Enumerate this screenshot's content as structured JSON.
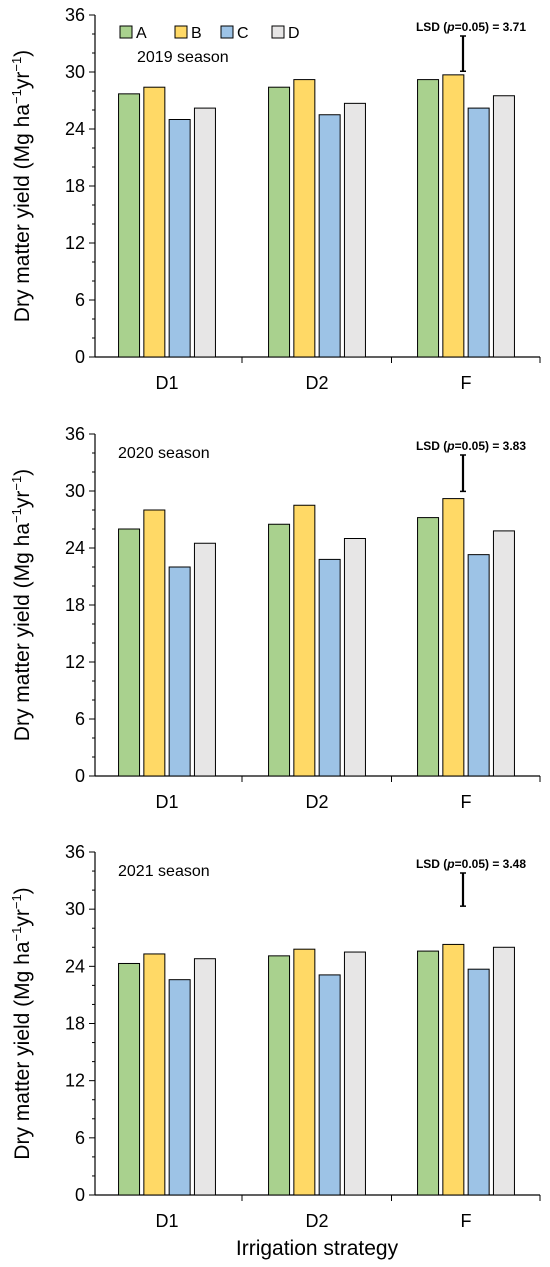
{
  "colors": {
    "A": "#a9d18e",
    "B": "#ffd966",
    "C": "#9dc3e6",
    "D": "#e7e6e6"
  },
  "legend": [
    "A",
    "B",
    "C",
    "D"
  ],
  "x_axis_title": "Irrigation strategy",
  "y_axis_title_parts": [
    "Dry matter yield (Mg ha",
    "−1",
    "yr",
    "−1",
    ")"
  ],
  "chart_data": [
    {
      "type": "bar",
      "title": "2019 season",
      "categories": [
        "D1",
        "D2",
        "F"
      ],
      "series": [
        {
          "name": "A",
          "values": [
            27.7,
            28.4,
            29.2
          ]
        },
        {
          "name": "B",
          "values": [
            28.4,
            29.2,
            29.7
          ]
        },
        {
          "name": "C",
          "values": [
            25.0,
            25.5,
            26.2
          ]
        },
        {
          "name": "D",
          "values": [
            26.2,
            26.7,
            27.5
          ]
        }
      ],
      "ylim": [
        0,
        36
      ],
      "yticks": [
        0,
        6,
        12,
        18,
        24,
        30,
        36
      ],
      "lsd": {
        "prefix": "LSD (",
        "p": "p",
        "suffix": "=0.05) = 3.71",
        "value": 3.71
      }
    },
    {
      "type": "bar",
      "title": "2020 season",
      "categories": [
        "D1",
        "D2",
        "F"
      ],
      "series": [
        {
          "name": "A",
          "values": [
            26.0,
            26.5,
            27.2
          ]
        },
        {
          "name": "B",
          "values": [
            28.0,
            28.5,
            29.2
          ]
        },
        {
          "name": "C",
          "values": [
            22.0,
            22.8,
            23.3
          ]
        },
        {
          "name": "D",
          "values": [
            24.5,
            25.0,
            25.8
          ]
        }
      ],
      "ylim": [
        0,
        36
      ],
      "yticks": [
        0,
        6,
        12,
        18,
        24,
        30,
        36
      ],
      "lsd": {
        "prefix": "LSD (",
        "p": "p",
        "suffix": "=0.05) = 3.83",
        "value": 3.83
      }
    },
    {
      "type": "bar",
      "title": "2021 season",
      "categories": [
        "D1",
        "D2",
        "F"
      ],
      "series": [
        {
          "name": "A",
          "values": [
            24.3,
            25.1,
            25.6
          ]
        },
        {
          "name": "B",
          "values": [
            25.3,
            25.8,
            26.3
          ]
        },
        {
          "name": "C",
          "values": [
            22.6,
            23.1,
            23.7
          ]
        },
        {
          "name": "D",
          "values": [
            24.8,
            25.5,
            26.0
          ]
        }
      ],
      "ylim": [
        0,
        36
      ],
      "yticks": [
        0,
        6,
        12,
        18,
        24,
        30,
        36
      ],
      "lsd": {
        "prefix": "LSD (",
        "p": "p",
        "suffix": "=0.05) = 3.48",
        "value": 3.48
      }
    }
  ]
}
